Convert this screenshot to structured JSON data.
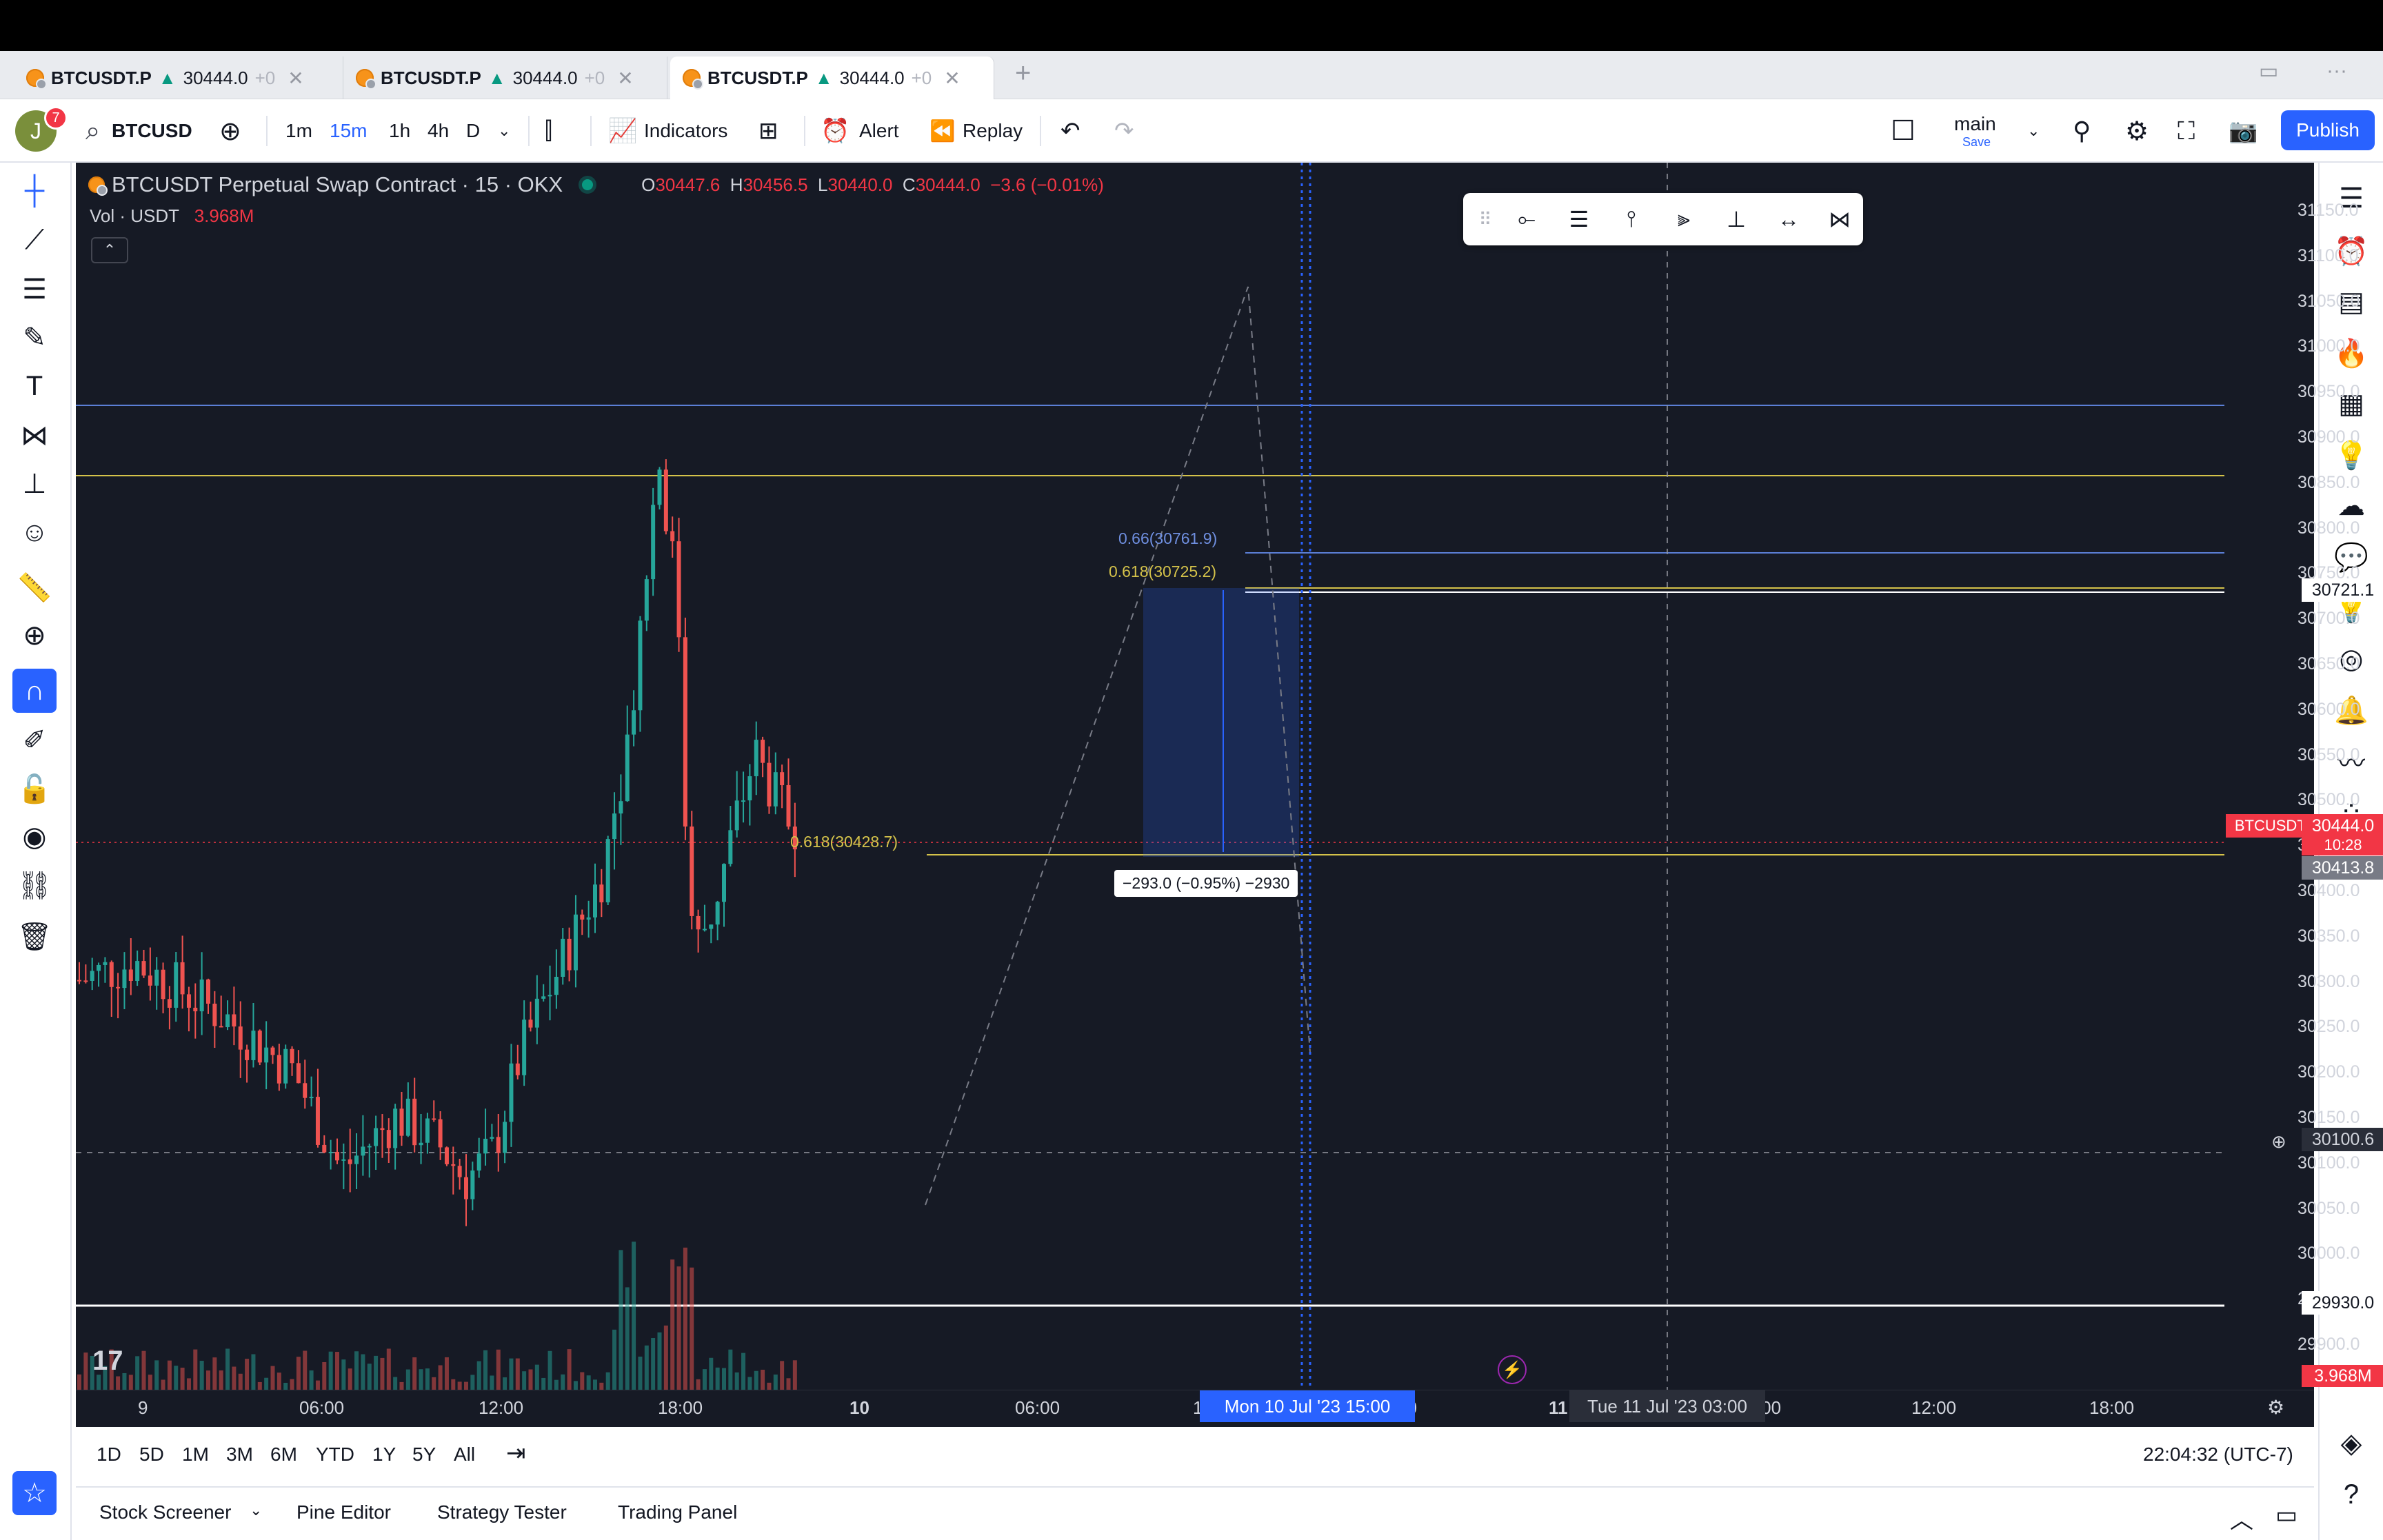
{
  "tabs": [
    {
      "symbol": "BTCUSDT.P",
      "price": "30444.0",
      "change": "+0",
      "active": false
    },
    {
      "symbol": "BTCUSDT.P",
      "price": "30444.0",
      "change": "+0",
      "active": false
    },
    {
      "symbol": "BTCUSDT.P",
      "price": "30444.0",
      "change": "+0",
      "active": true
    }
  ],
  "toolbar": {
    "avatar_letter": "J",
    "notification_count": "7",
    "symbol": "BTCUSD",
    "intervals": [
      "1m",
      "15m",
      "1h",
      "4h",
      "D"
    ],
    "active_interval": "15m",
    "indicators_label": "Indicators",
    "alert_label": "Alert",
    "replay_label": "Replay",
    "layout_name": "main",
    "layout_status": "Save",
    "publish_label": "Publish"
  },
  "chart": {
    "title": "BTCUSDT Perpetual Swap Contract · 15 · OKX",
    "ohlc": {
      "o_label": "O",
      "o": "30447.6",
      "h_label": "H",
      "h": "30456.5",
      "l_label": "L",
      "l": "30440.0",
      "c_label": "C",
      "c": "30444.0",
      "chg": "−3.6 (−0.01%)"
    },
    "volume_label": "Vol · USDT",
    "volume_value": "3.968M",
    "fib_labels": {
      "upper_066": "0.66(30761.9)",
      "upper_0618": "0.618(30725.2)",
      "lower_0618": "0.618(30428.7)"
    },
    "measure_label": "−293.0 (−0.95%) −2930",
    "symbol_tag": "BTCUSDT.P",
    "last_price": "30444.0",
    "countdown": "10:28",
    "crosshair_price": "30100.6",
    "line_prices": {
      "a": "30721.1",
      "b": "30413.8",
      "c": "29930.0"
    },
    "volume_axis_value": "3.968M",
    "price_axis": [
      "31150.0",
      "31100.0",
      "31050.0",
      "31000.0",
      "30950.0",
      "30900.0",
      "30850.0",
      "30800.0",
      "30750.0",
      "30700.0",
      "30650.0",
      "30600.0",
      "30550.0",
      "30500.0",
      "30450.0",
      "30400.0",
      "30350.0",
      "30300.0",
      "30250.0",
      "30200.0",
      "30150.0",
      "30100.0",
      "30050.0",
      "30000.0",
      "29950.0",
      "29900.0"
    ],
    "time_axis": [
      "9",
      "06:00",
      "12:00",
      "18:00",
      "10",
      "06:00",
      "12:00",
      "18:00",
      "11",
      "06:00",
      "12:00",
      "18:00"
    ],
    "time_cursor_label": "Mon 10 Jul '23   15:00",
    "time_cursor2_label": "Tue 11 Jul '23   03:00",
    "colors": {
      "background": "#161a25",
      "up": "#26a69a",
      "down": "#ef5350",
      "fib_yellow": "#d4c24a",
      "fib_blue": "#5b7fd6"
    }
  },
  "ranges": [
    "1D",
    "5D",
    "1M",
    "3M",
    "6M",
    "YTD",
    "1Y",
    "5Y",
    "All"
  ],
  "clock": "22:04:32 (UTC-7)",
  "bottom_tabs": [
    "Stock Screener",
    "Pine Editor",
    "Strategy Tester",
    "Trading Panel"
  ]
}
